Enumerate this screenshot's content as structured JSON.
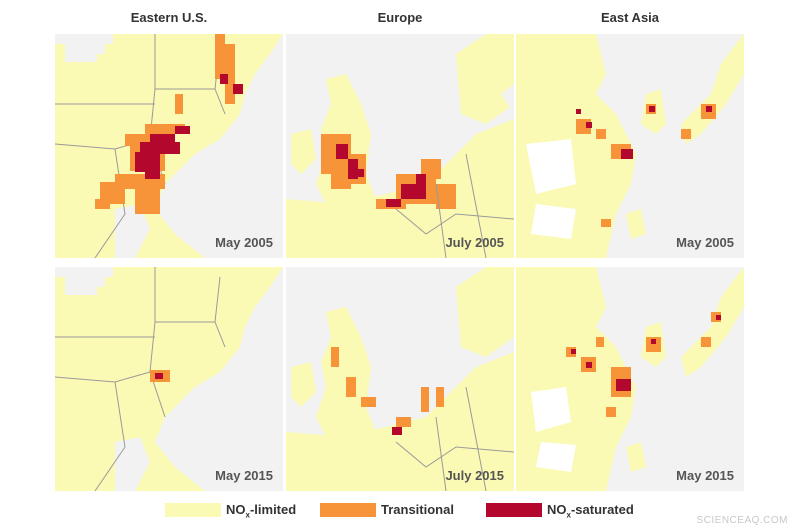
{
  "columns": [
    "Eastern U.S.",
    "Europe",
    "East Asia"
  ],
  "panels": [
    {
      "region": "Eastern U.S.",
      "date": "May 2005"
    },
    {
      "region": "Europe",
      "date": "July 2005"
    },
    {
      "region": "East Asia",
      "date": "May 2005"
    },
    {
      "region": "Eastern U.S.",
      "date": "May 2015"
    },
    {
      "region": "Europe",
      "date": "July 2015"
    },
    {
      "region": "East Asia",
      "date": "May 2015"
    }
  ],
  "legend": {
    "items": [
      {
        "label_main": "NO",
        "label_sub": "x",
        "label_rest": "-limited",
        "color": "#fafab4"
      },
      {
        "label_main": "Transitional",
        "label_sub": "",
        "label_rest": "",
        "color": "#f7943a"
      },
      {
        "label_main": "NO",
        "label_sub": "x",
        "label_rest": "-saturated",
        "color": "#b3072d"
      }
    ]
  },
  "colors": {
    "land": "#fafab4",
    "water": "#f2f2f2",
    "transitional": "#f7943a",
    "saturated": "#b3072d",
    "borders": "#9a9a9a"
  },
  "credit": "SCIENCEAQ.COM"
}
